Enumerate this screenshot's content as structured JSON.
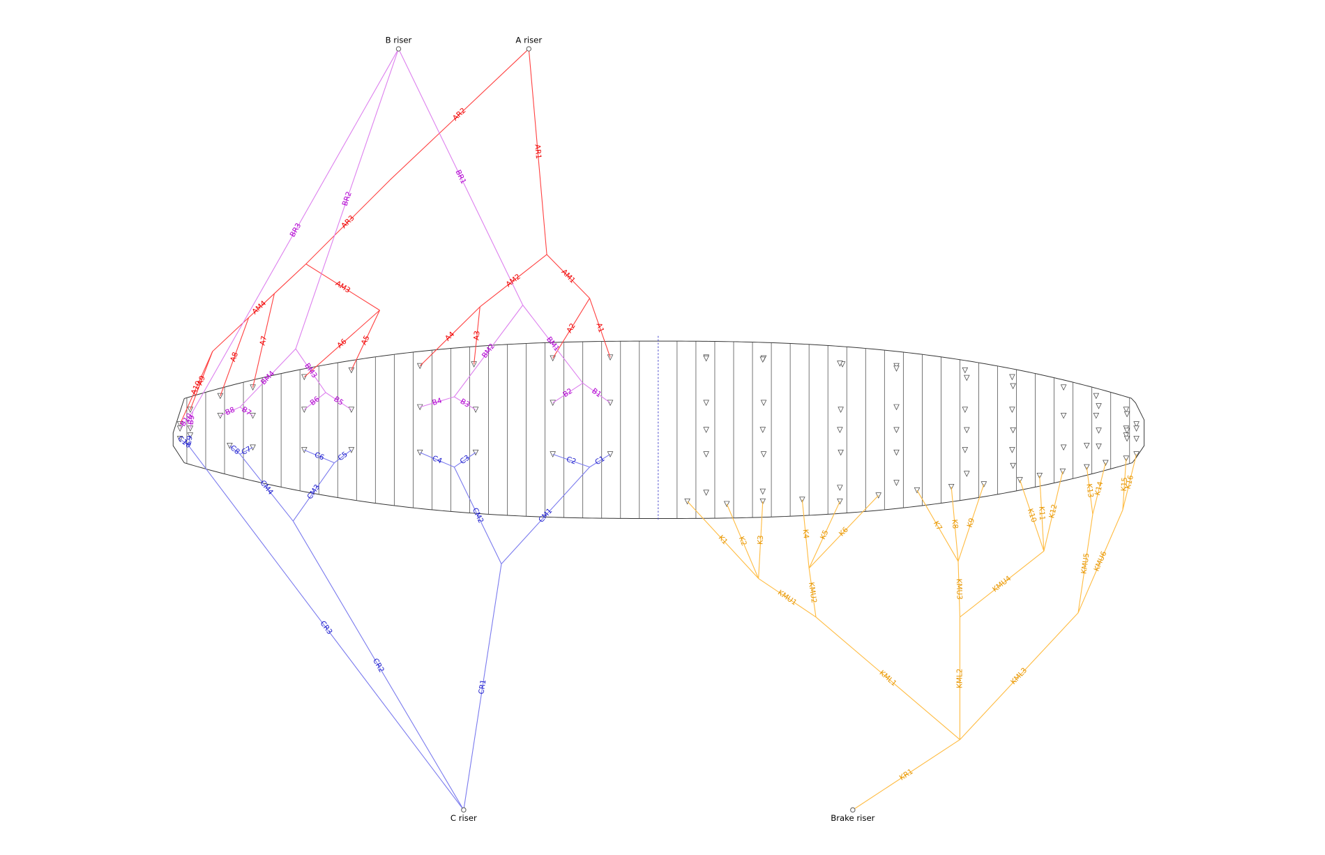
{
  "risers": {
    "a": "A riser",
    "b": "B riser",
    "c": "C riser",
    "brake": "Brake riser"
  },
  "lines": {
    "a": [
      "AR1",
      "AR2",
      "AR3",
      "AM1",
      "AM2",
      "AM3",
      "AM4",
      "A1",
      "A2",
      "A3",
      "A4",
      "A5",
      "A6",
      "A7",
      "A8",
      "A9",
      "A10"
    ],
    "b": [
      "BR1",
      "BR2",
      "BR3",
      "BM1",
      "BM2",
      "BM3",
      "BM4",
      "B1",
      "B2",
      "B3",
      "B4",
      "B5",
      "B6",
      "B7",
      "B8",
      "B9",
      "B10"
    ],
    "c": [
      "CR1",
      "CR2",
      "CR3",
      "CM1",
      "CM2",
      "CM3",
      "CM4",
      "C1",
      "C2",
      "C3",
      "C4",
      "C5",
      "C6",
      "C7",
      "C8",
      "C9",
      "C10"
    ],
    "brake": [
      "KR1",
      "KML1",
      "KML2",
      "KML3",
      "KMU1",
      "KMU2",
      "KMU3",
      "KMU4",
      "KMU5",
      "KMU6",
      "K1",
      "K2",
      "K3",
      "K4",
      "K5",
      "K6",
      "K7",
      "K8",
      "K9",
      "K10",
      "K11",
      "K12",
      "K13",
      "K14",
      "K15",
      "K16"
    ]
  }
}
